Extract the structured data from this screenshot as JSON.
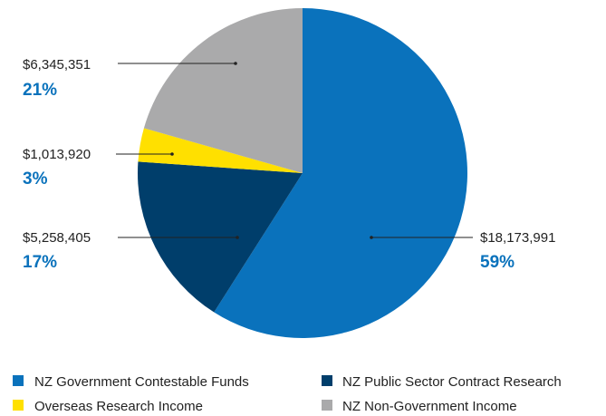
{
  "chart_data": {
    "type": "pie",
    "title": "",
    "slices": [
      {
        "label": "NZ Government Contestable Funds",
        "value": 18173991,
        "amount_label": "$18,173,991",
        "percent_label": "59%",
        "color": "#0a72bc"
      },
      {
        "label": "NZ Public Sector Contract Research",
        "value": 5258405,
        "amount_label": "$5,258,405",
        "percent_label": "17%",
        "color": "#003e6b"
      },
      {
        "label": "Overseas Research Income",
        "value": 1013920,
        "amount_label": "$1,013,920",
        "percent_label": "3%",
        "color": "#ffe000"
      },
      {
        "label": "NZ Non-Government Income",
        "value": 6345351,
        "amount_label": "$6,345,351",
        "percent_label": "21%",
        "color": "#aaaaab"
      }
    ],
    "start": "12 o'clock",
    "direction": "clockwise",
    "legend_position": "bottom"
  },
  "legend": [
    {
      "label": "NZ Government Contestable Funds",
      "color": "#0a72bc"
    },
    {
      "label": "NZ Public Sector Contract Research",
      "color": "#003e6b"
    },
    {
      "label": "Overseas Research Income",
      "color": "#ffe000"
    },
    {
      "label": "NZ Non-Government Income",
      "color": "#aaaaab"
    }
  ]
}
